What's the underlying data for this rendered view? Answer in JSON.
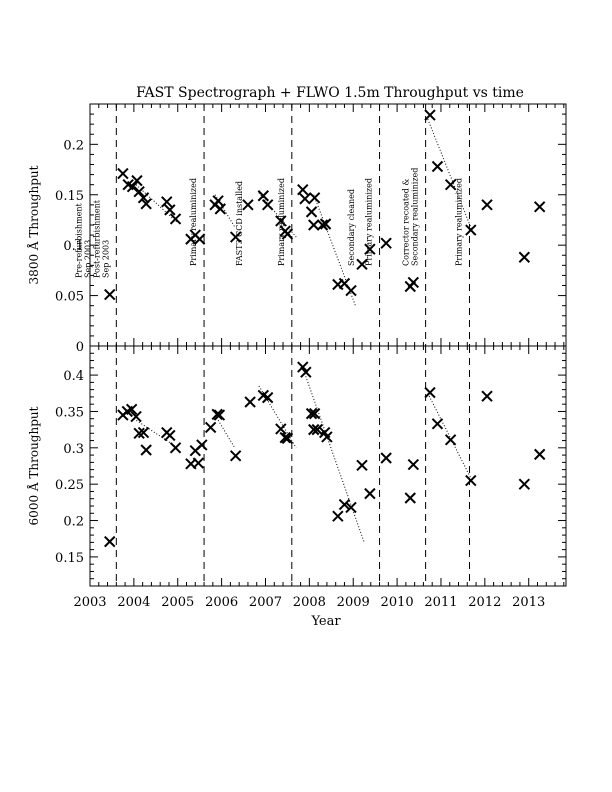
{
  "chart_data": {
    "type": "scatter",
    "title": "FAST Spectrograph + FLWO 1.5m Throughput vs time",
    "xlabel": "Year",
    "xlim": [
      2003.0,
      2013.85
    ],
    "xticks": [
      2003,
      2004,
      2005,
      2006,
      2007,
      2008,
      2009,
      2010,
      2011,
      2012,
      2013
    ],
    "panels": [
      {
        "id": "top",
        "ylabel": "3800 Å Throughput",
        "ylim": [
          0.0,
          0.24
        ],
        "yticks": [
          0,
          0.05,
          0.1,
          0.15,
          0.2
        ],
        "ytick_labels": [
          "0",
          "0.05",
          "0.1",
          "0.15",
          "0.2"
        ],
        "points": [
          [
            2003.45,
            0.051
          ],
          [
            2003.75,
            0.171
          ],
          [
            2003.87,
            0.16
          ],
          [
            2003.97,
            0.158
          ],
          [
            2004.07,
            0.164
          ],
          [
            2004.12,
            0.153
          ],
          [
            2004.22,
            0.147
          ],
          [
            2004.28,
            0.141
          ],
          [
            2004.75,
            0.143
          ],
          [
            2004.82,
            0.135
          ],
          [
            2004.95,
            0.126
          ],
          [
            2005.3,
            0.106
          ],
          [
            2005.4,
            0.11
          ],
          [
            2005.5,
            0.106
          ],
          [
            2005.85,
            0.14
          ],
          [
            2005.92,
            0.144
          ],
          [
            2005.97,
            0.136
          ],
          [
            2006.32,
            0.108
          ],
          [
            2006.6,
            0.14
          ],
          [
            2006.95,
            0.149
          ],
          [
            2007.05,
            0.14
          ],
          [
            2007.35,
            0.124
          ],
          [
            2007.45,
            0.114
          ],
          [
            2007.5,
            0.111
          ],
          [
            2007.85,
            0.155
          ],
          [
            2007.9,
            0.146
          ],
          [
            2008.05,
            0.133
          ],
          [
            2008.1,
            0.12
          ],
          [
            2008.12,
            0.147
          ],
          [
            2008.3,
            0.12
          ],
          [
            2008.37,
            0.121
          ],
          [
            2008.65,
            0.061
          ],
          [
            2008.8,
            0.062
          ],
          [
            2008.95,
            0.055
          ],
          [
            2009.2,
            0.081
          ],
          [
            2009.38,
            0.096
          ],
          [
            2009.75,
            0.102
          ],
          [
            2010.3,
            0.059
          ],
          [
            2010.37,
            0.063
          ],
          [
            2010.75,
            0.229
          ],
          [
            2010.92,
            0.178
          ],
          [
            2011.22,
            0.16
          ],
          [
            2011.68,
            0.115
          ],
          [
            2012.05,
            0.14
          ],
          [
            2012.9,
            0.088
          ],
          [
            2013.25,
            0.138
          ]
        ],
        "trend_lines": [
          [
            [
              2004.0,
              0.162
            ],
            [
              2005.0,
              0.122
            ]
          ],
          [
            [
              2005.85,
              0.15
            ],
            [
              2006.3,
              0.118
            ]
          ],
          [
            [
              2006.85,
              0.152
            ],
            [
              2007.7,
              0.108
            ]
          ],
          [
            [
              2008.1,
              0.15
            ],
            [
              2009.05,
              0.04
            ]
          ],
          [
            [
              2010.7,
              0.225
            ],
            [
              2011.75,
              0.11
            ]
          ]
        ]
      },
      {
        "id": "bottom",
        "ylabel": "6000 Å Throughput",
        "ylim": [
          0.11,
          0.44
        ],
        "yticks": [
          0.15,
          0.2,
          0.25,
          0.3,
          0.35,
          0.4
        ],
        "ytick_labels": [
          "0.15",
          "0.2",
          "0.25",
          "0.3",
          "0.35",
          "0.4"
        ],
        "points": [
          [
            2003.45,
            0.171
          ],
          [
            2003.75,
            0.345
          ],
          [
            2003.85,
            0.35
          ],
          [
            2003.95,
            0.353
          ],
          [
            2004.05,
            0.343
          ],
          [
            2004.12,
            0.32
          ],
          [
            2004.22,
            0.321
          ],
          [
            2004.28,
            0.297
          ],
          [
            2004.75,
            0.321
          ],
          [
            2004.82,
            0.317
          ],
          [
            2004.95,
            0.3
          ],
          [
            2005.3,
            0.278
          ],
          [
            2005.4,
            0.296
          ],
          [
            2005.47,
            0.279
          ],
          [
            2005.55,
            0.304
          ],
          [
            2005.75,
            0.328
          ],
          [
            2005.9,
            0.346
          ],
          [
            2005.95,
            0.345
          ],
          [
            2006.32,
            0.289
          ],
          [
            2006.65,
            0.363
          ],
          [
            2006.95,
            0.372
          ],
          [
            2007.05,
            0.369
          ],
          [
            2007.35,
            0.326
          ],
          [
            2007.45,
            0.314
          ],
          [
            2007.5,
            0.313
          ],
          [
            2007.85,
            0.411
          ],
          [
            2007.92,
            0.404
          ],
          [
            2008.05,
            0.347
          ],
          [
            2008.1,
            0.325
          ],
          [
            2008.12,
            0.347
          ],
          [
            2008.18,
            0.325
          ],
          [
            2008.35,
            0.321
          ],
          [
            2008.4,
            0.315
          ],
          [
            2008.65,
            0.206
          ],
          [
            2008.8,
            0.222
          ],
          [
            2008.95,
            0.218
          ],
          [
            2009.2,
            0.276
          ],
          [
            2009.38,
            0.237
          ],
          [
            2009.75,
            0.286
          ],
          [
            2010.3,
            0.231
          ],
          [
            2010.37,
            0.277
          ],
          [
            2010.75,
            0.376
          ],
          [
            2010.92,
            0.333
          ],
          [
            2011.22,
            0.311
          ],
          [
            2011.68,
            0.255
          ],
          [
            2012.05,
            0.371
          ],
          [
            2012.9,
            0.25
          ],
          [
            2013.25,
            0.291
          ]
        ],
        "trend_lines": [
          [
            [
              2004.0,
              0.34
            ],
            [
              2005.0,
              0.3
            ]
          ],
          [
            [
              2005.85,
              0.345
            ],
            [
              2006.3,
              0.3
            ]
          ],
          [
            [
              2006.85,
              0.385
            ],
            [
              2007.7,
              0.3
            ]
          ],
          [
            [
              2007.85,
              0.41
            ],
            [
              2009.25,
              0.17
            ]
          ],
          [
            [
              2010.7,
              0.375
            ],
            [
              2011.75,
              0.25
            ]
          ]
        ]
      }
    ],
    "events": [
      {
        "x": 2003.6,
        "labels": [
          "Pre-refurbishment",
          "Sep 2003",
          "Post-refurbishment",
          "Sep 2003"
        ]
      },
      {
        "x": 2005.6,
        "labels": [
          "Primary realuminized"
        ]
      },
      {
        "x": 2007.6,
        "labels": [
          "Primary realuminized"
        ]
      },
      {
        "x": 2009.6,
        "labels": [
          "Primary realuminized"
        ]
      },
      {
        "x": 2010.65,
        "labels": [
          "Corrector recoated &",
          "Secondary realuminized"
        ]
      },
      {
        "x": 2011.65,
        "labels": [
          "Primary realuminized"
        ]
      }
    ],
    "annotations": [
      {
        "x": 2006.45,
        "labels": [
          "FAST3 CCD installed"
        ]
      },
      {
        "x": 2009.0,
        "labels": [
          "Secondary cleaned"
        ]
      }
    ],
    "grid": false,
    "legend": "none"
  }
}
